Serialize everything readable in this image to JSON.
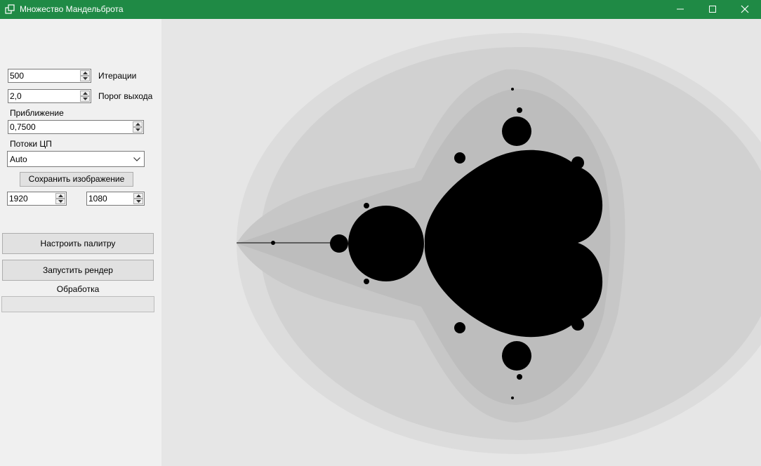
{
  "window": {
    "title": "Множество Мандельброта",
    "titlebar_color": "#1f8a45"
  },
  "controls": {
    "iterations": {
      "value": "500",
      "label": "Итерации"
    },
    "escape": {
      "value": "2,0",
      "label": "Порог выхода"
    },
    "zoom": {
      "label": "Приближение",
      "value": "0,7500"
    },
    "threads": {
      "label": "Потоки ЦП",
      "value": "Auto"
    },
    "save_button": "Сохранить изображение",
    "width": "1920",
    "height": "1080",
    "palette_button": "Настроить палитру",
    "render_button": "Запустить рендер",
    "status_label": "Обработка",
    "progress": 0
  },
  "render": {
    "colors": [
      "#e6e6e6",
      "#dcdcdc",
      "#d1d1d1",
      "#c7c7c7",
      "#bdbdbd",
      "#000000"
    ]
  }
}
